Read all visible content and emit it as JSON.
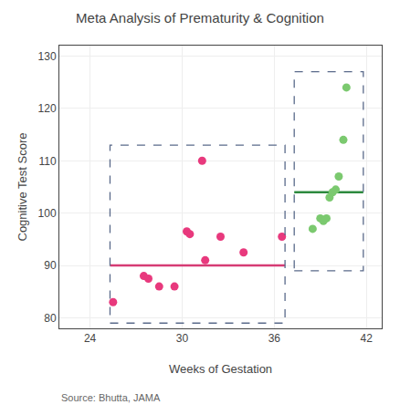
{
  "chart_data": {
    "type": "scatter",
    "title": "Meta Analysis of Prematurity & Cognition",
    "xlabel": "Weeks of Gestation",
    "ylabel": "Cognitive Test Score",
    "annotations": [
      "Source: Bhutta, JAMA"
    ],
    "xlim": [
      22,
      43
    ],
    "ylim": [
      78,
      132
    ],
    "xticks": [
      24,
      30,
      36,
      42
    ],
    "yticks": [
      80,
      90,
      100,
      110,
      120,
      130
    ],
    "grid": true,
    "box_color": "#5a6a8a",
    "series": [
      {
        "color": "#e8397d",
        "x": [
          25.5,
          27.5,
          27.8,
          28.5,
          29.5,
          30.3,
          30.5,
          31.3,
          31.5,
          32.5,
          34.0,
          36.5
        ],
        "values": [
          83,
          88,
          87.5,
          86,
          86,
          96.5,
          96,
          110,
          91,
          95.5,
          92.5,
          95.5
        ],
        "mean": 90,
        "mean_color": "#d63b74",
        "box": {
          "x": [
            25.3,
            36.7
          ],
          "y": [
            79,
            113
          ]
        }
      },
      {
        "color": "#7bc96f",
        "x": [
          38.5,
          39.0,
          39.2,
          39.4,
          39.6,
          39.8,
          40.0,
          40.2,
          40.5,
          40.7
        ],
        "values": [
          97,
          99,
          98.5,
          99,
          103,
          104,
          104.5,
          107,
          114,
          124
        ],
        "mean": 104,
        "mean_color": "#2d8a3e",
        "box": {
          "x": [
            37.3,
            41.8
          ],
          "y": [
            89,
            127
          ]
        }
      }
    ]
  }
}
